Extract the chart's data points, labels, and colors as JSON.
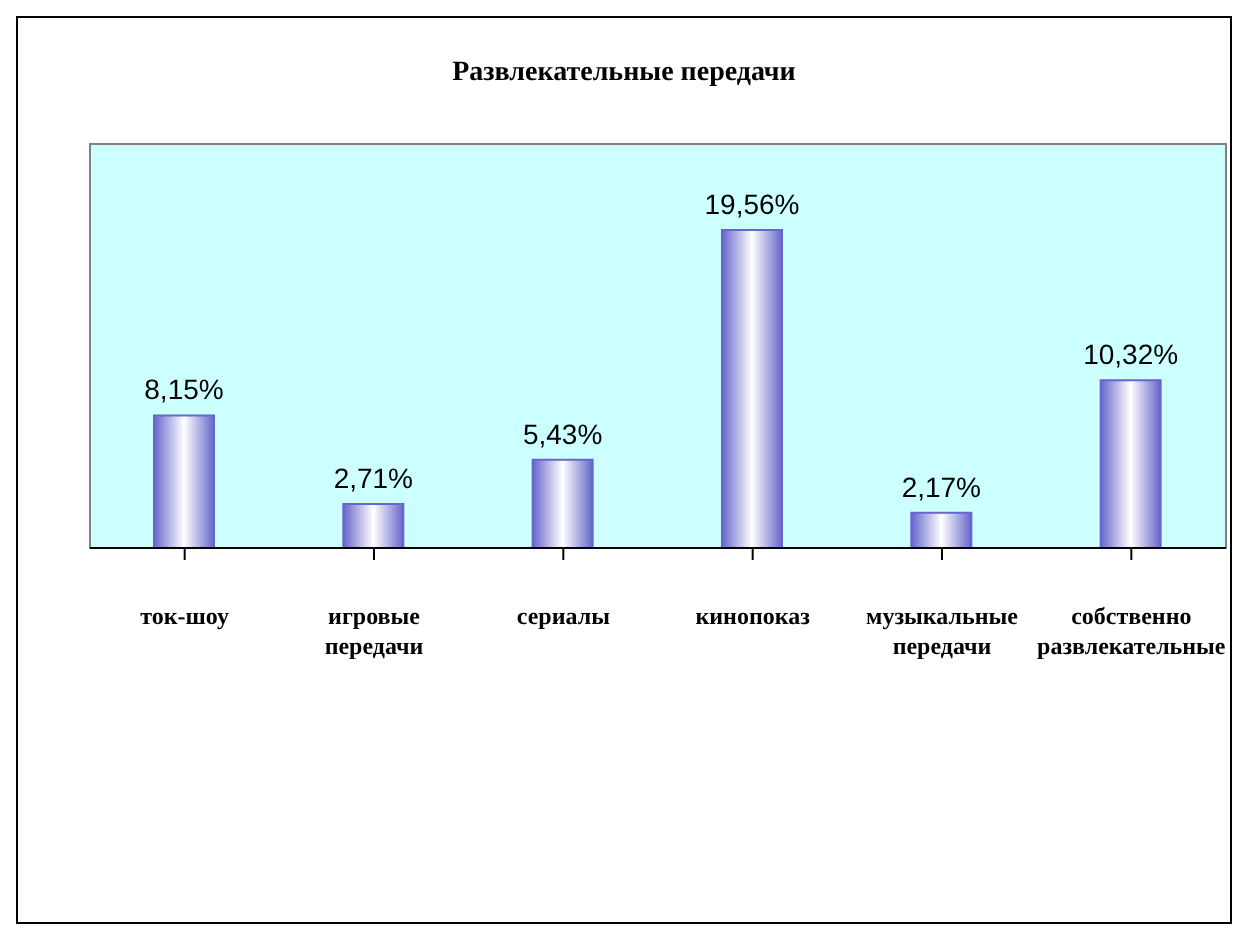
{
  "chart_data": {
    "type": "bar",
    "title": "Развлекательные передачи",
    "categories": [
      "ток-шоу",
      "игровые передачи",
      "сериалы",
      "кинопоказ",
      "музыкальные передачи",
      "собственно развлекательные"
    ],
    "values": [
      8.15,
      2.71,
      5.43,
      19.56,
      2.17,
      10.32
    ],
    "value_labels": [
      "8,15%",
      "2,71%",
      "5,43%",
      "19,56%",
      "2,17%",
      "10,32%"
    ],
    "color": "#6666cc"
  }
}
